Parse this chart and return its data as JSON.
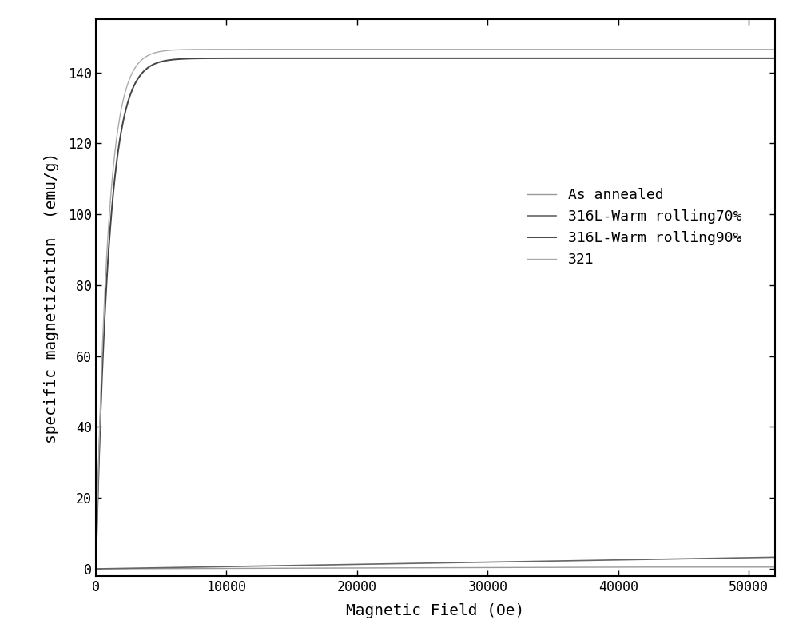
{
  "title": "",
  "xlabel": "Magnetic Field (Oe)",
  "ylabel": "specific magnetization  (emu/g)",
  "xlim": [
    0,
    52000
  ],
  "ylim": [
    -2,
    155
  ],
  "xticks": [
    0,
    10000,
    20000,
    30000,
    40000,
    50000
  ],
  "xticklabels": [
    "0",
    "10000",
    "20000",
    "30000",
    "40000",
    "50000"
  ],
  "yticks": [
    0,
    20,
    40,
    60,
    80,
    100,
    120,
    140
  ],
  "legend_labels": [
    "As annealed",
    "316L-Warm rolling70%",
    "316L-Warm rolling90%",
    "321"
  ],
  "legend_colors": [
    "#999999",
    "#666666",
    "#444444",
    "#aaaaaa"
  ],
  "legend_linewidths": [
    1.0,
    1.2,
    1.4,
    1.0
  ],
  "figsize": [
    10.0,
    8.01
  ],
  "dpi": 100,
  "bg_color": "#ffffff",
  "axis_color": "#000000",
  "font_size": 13,
  "tick_font_size": 12,
  "label_font_size": 14
}
